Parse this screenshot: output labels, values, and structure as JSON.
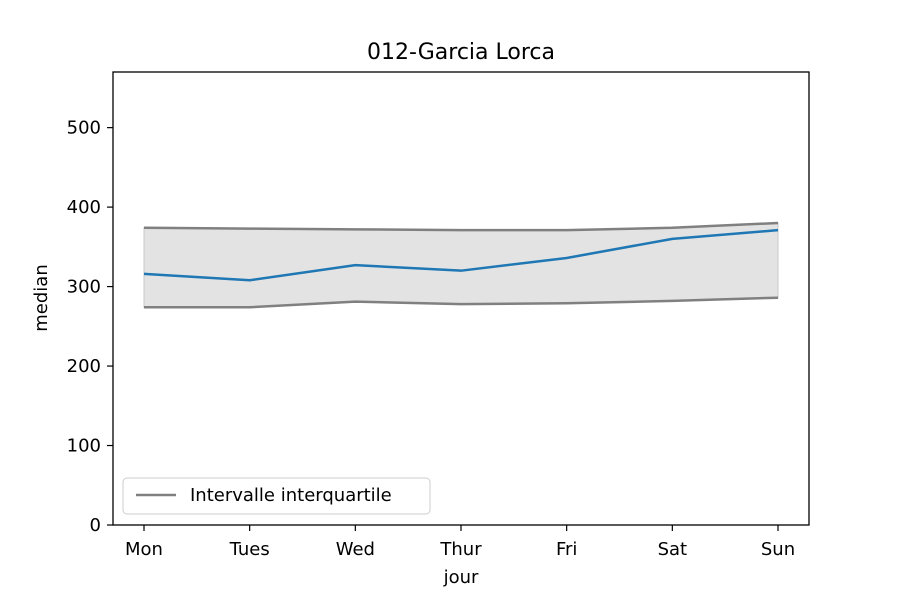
{
  "chart_data": {
    "type": "line",
    "title": "012-Garcia Lorca",
    "xlabel": "jour",
    "ylabel": "median",
    "categories": [
      "Mon",
      "Tues",
      "Wed",
      "Thur",
      "Fri",
      "Sat",
      "Sun"
    ],
    "ylim": [
      0,
      570
    ],
    "yticks": [
      0,
      100,
      200,
      300,
      400,
      500
    ],
    "grid": false,
    "legend_position": "lower-left",
    "series": [
      {
        "key": "median",
        "color": "#1f77b4",
        "values": [
          316,
          308,
          327,
          320,
          336,
          360,
          371
        ]
      }
    ],
    "interval": {
      "name": "Intervalle interquartile",
      "line_color": "#808080",
      "fill_color": "#e3e3e3",
      "lower": [
        274,
        274,
        281,
        278,
        279,
        282,
        286
      ],
      "upper": [
        374,
        373,
        372,
        371,
        371,
        374,
        380
      ]
    }
  }
}
